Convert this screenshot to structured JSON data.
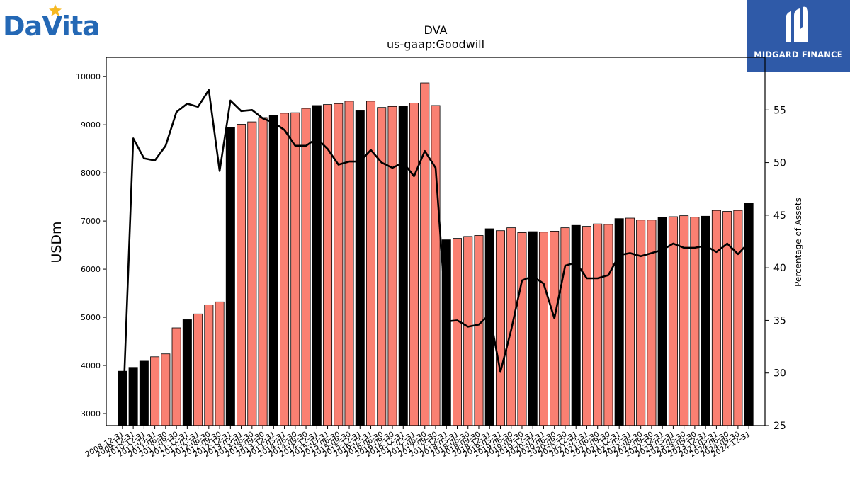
{
  "logos": {
    "left": {
      "text": "DaVita",
      "color": "#2468b5",
      "star_color": "#f5b820"
    },
    "right": {
      "text": "MIDGARD FINANCE",
      "bg": "#2f5aa8"
    }
  },
  "chart_data": {
    "type": "bar",
    "title": "DVA",
    "subtitle": "us-gaap:Goodwill",
    "ylabel": "USDm",
    "y2label": "Percentage of Assets",
    "ylim": [
      2750,
      10400
    ],
    "y2lim": [
      25,
      60
    ],
    "yticks": [
      3000,
      4000,
      5000,
      6000,
      7000,
      8000,
      9000,
      10000
    ],
    "y2ticks": [
      25,
      30,
      35,
      40,
      45,
      50,
      55
    ],
    "grid": false,
    "bar_colors": {
      "annual": "#000000",
      "quarterly": "#fa8072"
    },
    "line_color": "#000000",
    "categories": [
      "2008-12-31",
      "2009-12-31",
      "2010-12-31",
      "2011-03-31",
      "2011-06-30",
      "2011-09-30",
      "2011-12-31",
      "2012-03-31",
      "2012-06-30",
      "2012-09-30",
      "2012-12-31",
      "2013-03-31",
      "2013-06-30",
      "2013-09-30",
      "2013-12-31",
      "2014-03-31",
      "2014-06-30",
      "2014-09-30",
      "2014-12-31",
      "2015-03-31",
      "2015-06-30",
      "2015-09-30",
      "2015-12-31",
      "2016-03-31",
      "2016-06-30",
      "2016-09-30",
      "2016-12-31",
      "2017-03-31",
      "2017-06-30",
      "2017-09-30",
      "2017-12-31",
      "2018-03-31",
      "2018-06-30",
      "2018-09-30",
      "2018-12-31",
      "2019-03-31",
      "2019-06-30",
      "2019-09-30",
      "2019-12-31",
      "2020-03-31",
      "2020-06-30",
      "2020-09-30",
      "2020-12-31",
      "2021-03-31",
      "2021-06-30",
      "2021-09-30",
      "2021-12-31",
      "2022-03-31",
      "2022-06-30",
      "2022-09-30",
      "2022-12-31",
      "2023-03-31",
      "2023-06-30",
      "2023-09-30",
      "2023-12-31",
      "2024-03-31",
      "2024-06-30",
      "2024-09-30",
      "2024-12-31"
    ],
    "series": [
      {
        "type": "bar",
        "values": [
          3880,
          3960,
          4090,
          4180,
          4240,
          4780,
          4950,
          5070,
          5260,
          5320,
          8950,
          9010,
          9060,
          9150,
          9200,
          9240,
          9250,
          9340,
          9400,
          9420,
          9440,
          9490,
          9290,
          9490,
          9360,
          9380,
          9390,
          9450,
          9870,
          9400,
          6610,
          6640,
          6680,
          6700,
          6840,
          6800,
          6860,
          6760,
          6780,
          6770,
          6790,
          6860,
          6910,
          6890,
          6940,
          6930,
          7050,
          7060,
          7020,
          7020,
          7080,
          7090,
          7110,
          7080,
          7100,
          7220,
          7200,
          7220,
          7370
        ],
        "annual": [
          true,
          true,
          true,
          false,
          false,
          false,
          true,
          false,
          false,
          false,
          true,
          false,
          false,
          false,
          true,
          false,
          false,
          false,
          true,
          false,
          false,
          false,
          true,
          false,
          false,
          false,
          true,
          false,
          false,
          false,
          true,
          false,
          false,
          false,
          true,
          false,
          false,
          false,
          true,
          false,
          false,
          false,
          true,
          false,
          false,
          false,
          true,
          false,
          false,
          false,
          true,
          false,
          false,
          false,
          true,
          false,
          false,
          false,
          true
        ]
      },
      {
        "type": "line",
        "axis": "y2",
        "values": [
          25,
          52.3,
          50.4,
          50.2,
          51.6,
          54.8,
          55.6,
          55.3,
          56.9,
          49.2,
          55.9,
          54.9,
          55,
          54.2,
          53.8,
          53.1,
          51.6,
          51.6,
          52.3,
          51.3,
          49.8,
          50.1,
          50.1,
          51.2,
          50,
          49.5,
          50,
          48.7,
          51.1,
          49.5,
          34.9,
          35,
          34.4,
          34.6,
          35.6,
          30.1,
          34.1,
          38.8,
          39.2,
          38.5,
          35.2,
          40.2,
          40.5,
          39,
          39,
          39.3,
          41.2,
          41.4,
          41.1,
          41.4,
          41.7,
          42.3,
          41.9,
          41.9,
          42.1,
          41.5,
          42.3,
          41.3,
          42.4
        ]
      }
    ]
  }
}
